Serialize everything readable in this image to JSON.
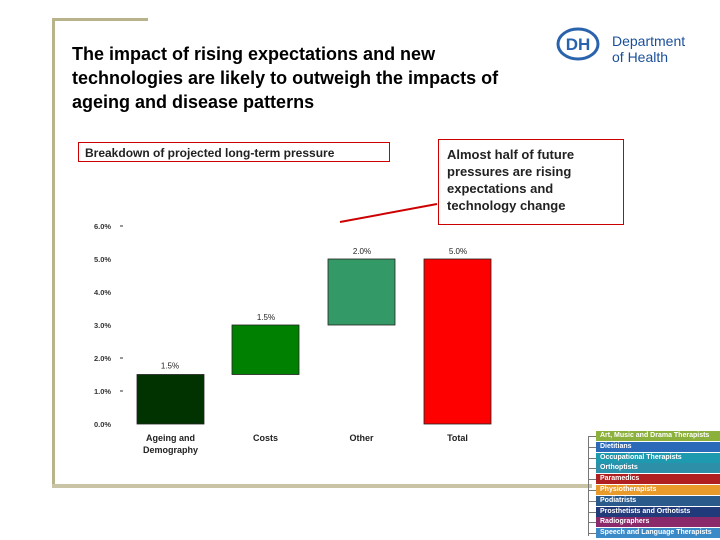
{
  "title": "The impact of rising expectations and new technologies are likely to outweigh the impacts of ageing and disease patterns",
  "logo": {
    "mark": "DH",
    "line1": "Department",
    "line2": "of Health"
  },
  "chart_label": "Breakdown of projected long-term pressure",
  "callout": "Almost half of future pressures are rising expectations and technology change",
  "chart_data": {
    "type": "bar",
    "subtype": "waterfall",
    "categories": [
      "Ageing and Demography",
      "Costs",
      "Other",
      "Total"
    ],
    "category_lines": [
      [
        "Ageing and",
        "Demography"
      ],
      [
        "Costs"
      ],
      [
        "Other"
      ],
      [
        "Total"
      ]
    ],
    "values": [
      1.5,
      1.5,
      2.0,
      5.0
    ],
    "bases": [
      0,
      1.5,
      3.0,
      0
    ],
    "data_labels": [
      "1.5%",
      "1.5%",
      "2.0%",
      "5.0%"
    ],
    "colors": [
      "#003300",
      "#008000",
      "#339966",
      "#ff0000"
    ],
    "y_ticks": [
      "0.0%",
      "1.0%",
      "2.0%",
      "3.0%",
      "4.0%",
      "5.0%",
      "6.0%"
    ],
    "ylim": [
      0,
      6
    ],
    "xlabel": "",
    "ylabel": ""
  },
  "professions": [
    {
      "label": "Art, Music and Drama Therapists",
      "color": "#8cb03c"
    },
    {
      "label": "Dietitians",
      "color": "#2a6ab8"
    },
    {
      "label": "Occupational Therapists",
      "color": "#1e9ab0"
    },
    {
      "label": "Orthoptists",
      "color": "#2d8fa8"
    },
    {
      "label": "Paramedics",
      "color": "#b02020"
    },
    {
      "label": "Physiotherapists",
      "color": "#e89a2a"
    },
    {
      "label": "Podiatrists",
      "color": "#2a5a8c"
    },
    {
      "label": "Prosthetists and Orthotists",
      "color": "#203a7a"
    },
    {
      "label": "Radiographers",
      "color": "#8a2a6a"
    },
    {
      "label": "Speech and Language Therapists",
      "color": "#3a8ac8"
    }
  ]
}
